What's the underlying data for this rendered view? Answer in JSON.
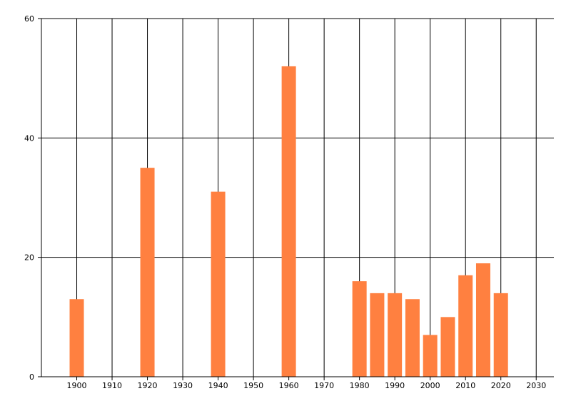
{
  "chart_data": {
    "type": "bar",
    "x": [
      1900,
      1920,
      1940,
      1960,
      1980,
      1985,
      1990,
      1995,
      2000,
      2005,
      2010,
      2015,
      2020
    ],
    "values": [
      13,
      35,
      31,
      52,
      16,
      14,
      14,
      13,
      7,
      10,
      17,
      19,
      14
    ],
    "x_ticks": [
      "1900",
      "1910",
      "1920",
      "1930",
      "1940",
      "1950",
      "1960",
      "1970",
      "1980",
      "1990",
      "2000",
      "2010",
      "2020",
      "2030"
    ],
    "y_ticks": [
      "0",
      "20",
      "40",
      "60"
    ],
    "xlim": [
      1890,
      2035
    ],
    "ylim": [
      0,
      60
    ],
    "title": "",
    "xlabel": "",
    "ylabel": "",
    "grid": true,
    "legend": "none",
    "colors": {
      "bar": "#FF8040",
      "grid": "#000000",
      "background": "#FFFFFF"
    }
  }
}
